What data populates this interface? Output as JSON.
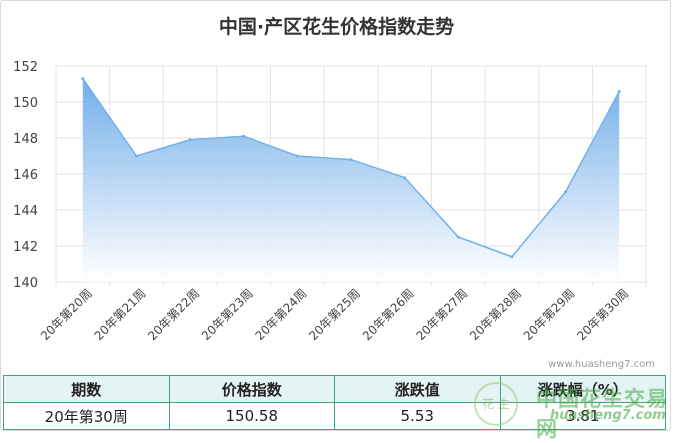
{
  "title": "中国·产区花生价格指数走势",
  "watermark": "www.huasheng7.com",
  "logo": {
    "glyphs": "花 生",
    "name": "中国花生交易网",
    "url": "huasheng7.com"
  },
  "table": {
    "headers": [
      "期数",
      "价格指数",
      "涨跌值",
      "涨跌幅（%）"
    ],
    "row": [
      "20年第30周",
      "150.58",
      "5.53",
      "3.81"
    ]
  },
  "colors": {
    "area_top": "#6aaae8",
    "area_bottom": "#ffffff",
    "line": "#74b0ea",
    "grid": "#e3e3e3",
    "table_border": "#3aa77f",
    "table_header_bg": "#e4f3f3"
  },
  "chart_data": {
    "type": "area",
    "title": "中国·产区花生价格指数走势",
    "categories": [
      "20年第20周",
      "20年第21周",
      "20年第22周",
      "20年第23周",
      "20年第24周",
      "20年第25周",
      "20年第26周",
      "20年第27周",
      "20年第28周",
      "20年第29周",
      "20年第30周"
    ],
    "values": [
      151.3,
      147.0,
      147.9,
      148.1,
      147.0,
      146.8,
      145.8,
      142.5,
      141.4,
      145.0,
      150.58
    ],
    "ylim": [
      140,
      152
    ],
    "yticks": [
      140,
      142,
      144,
      146,
      148,
      150,
      152
    ],
    "grid": true,
    "xlabel": "",
    "ylabel": ""
  }
}
